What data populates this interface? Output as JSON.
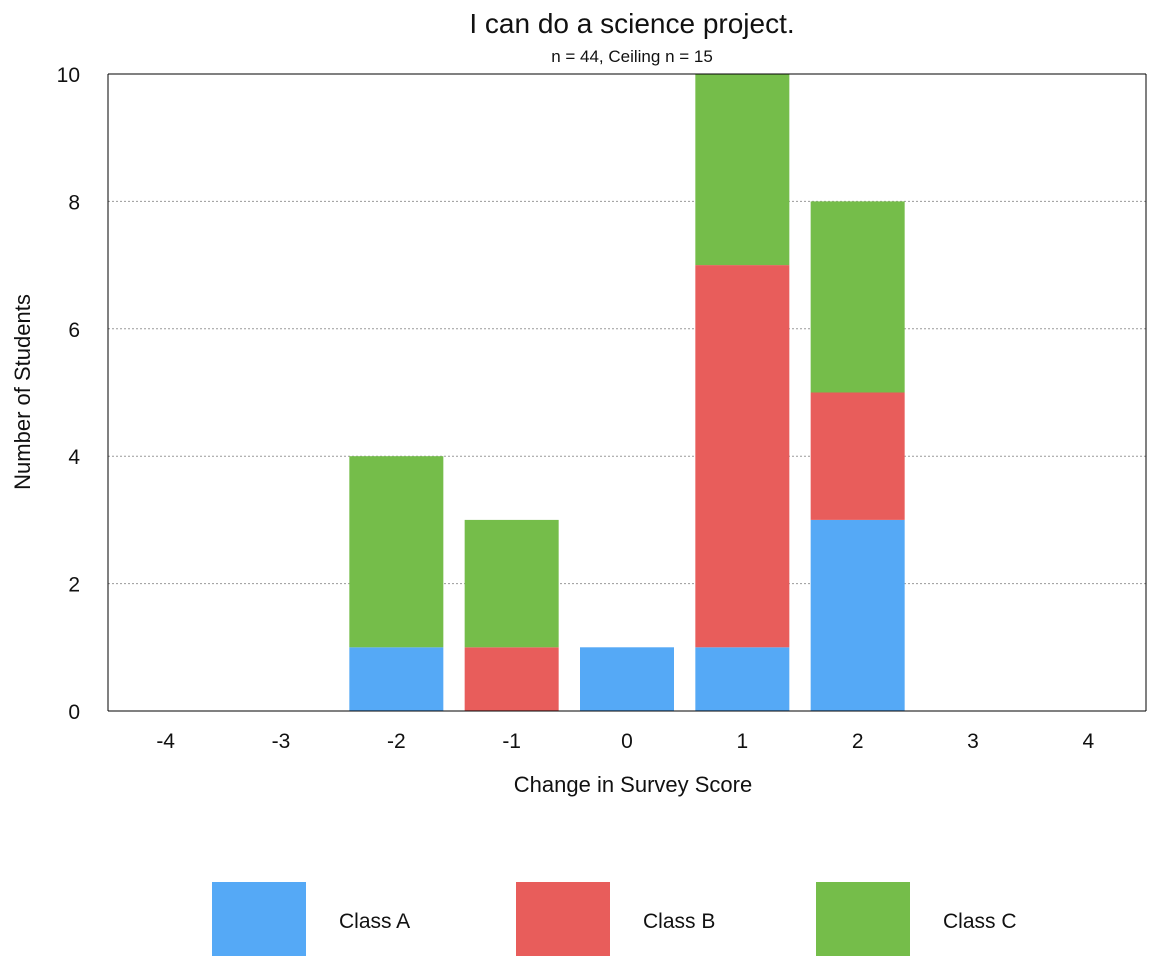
{
  "chart_data": {
    "type": "bar",
    "stacked": true,
    "title": "I can do a science project.",
    "subtitle": "n = 44, Ceiling n = 15",
    "xlabel": "Change in Survey Score",
    "ylabel": "Number of Students",
    "categories": [
      "-4",
      "-3",
      "-2",
      "-1",
      "0",
      "1",
      "2",
      "3",
      "4"
    ],
    "ylim": [
      0,
      10
    ],
    "yticks": [
      "0",
      "2",
      "4",
      "6",
      "8",
      "10"
    ],
    "grid": true,
    "legend_position": "bottom",
    "series": [
      {
        "name": "Class A",
        "color": "#55a9f6",
        "values": [
          0,
          0,
          1,
          0,
          1,
          1,
          3,
          0,
          0
        ]
      },
      {
        "name": "Class B",
        "color": "#e85d5b",
        "values": [
          0,
          0,
          0,
          1,
          0,
          6,
          2,
          0,
          0
        ]
      },
      {
        "name": "Class C",
        "color": "#75bd4a",
        "values": [
          0,
          0,
          3,
          2,
          0,
          3,
          3,
          0,
          0
        ]
      }
    ]
  }
}
